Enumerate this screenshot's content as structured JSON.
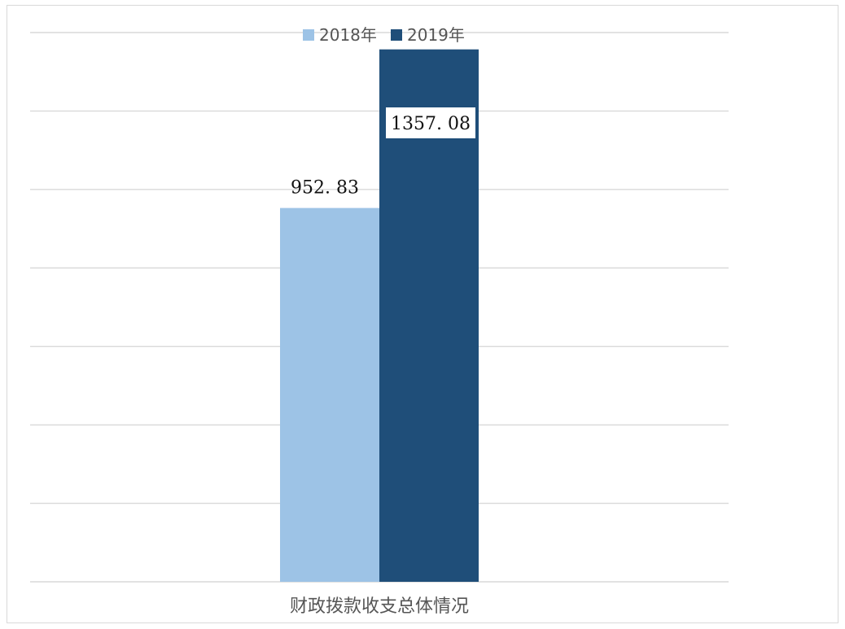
{
  "chart_data": {
    "type": "bar",
    "categories": [
      "财政拨款收支总体情况"
    ],
    "series": [
      {
        "name": "2018年",
        "color": "#9dc3e6",
        "values": [
          952.83
        ]
      },
      {
        "name": "2019年",
        "color": "#1f4e79",
        "values": [
          1357.08
        ]
      }
    ],
    "ylim": [
      0,
      1400
    ],
    "y_gridlines": [
      0,
      200,
      400,
      600,
      800,
      1000,
      1200,
      1400
    ],
    "grid": true,
    "legend": "top-center",
    "data_labels": [
      "952. 83",
      "1357. 08"
    ]
  }
}
